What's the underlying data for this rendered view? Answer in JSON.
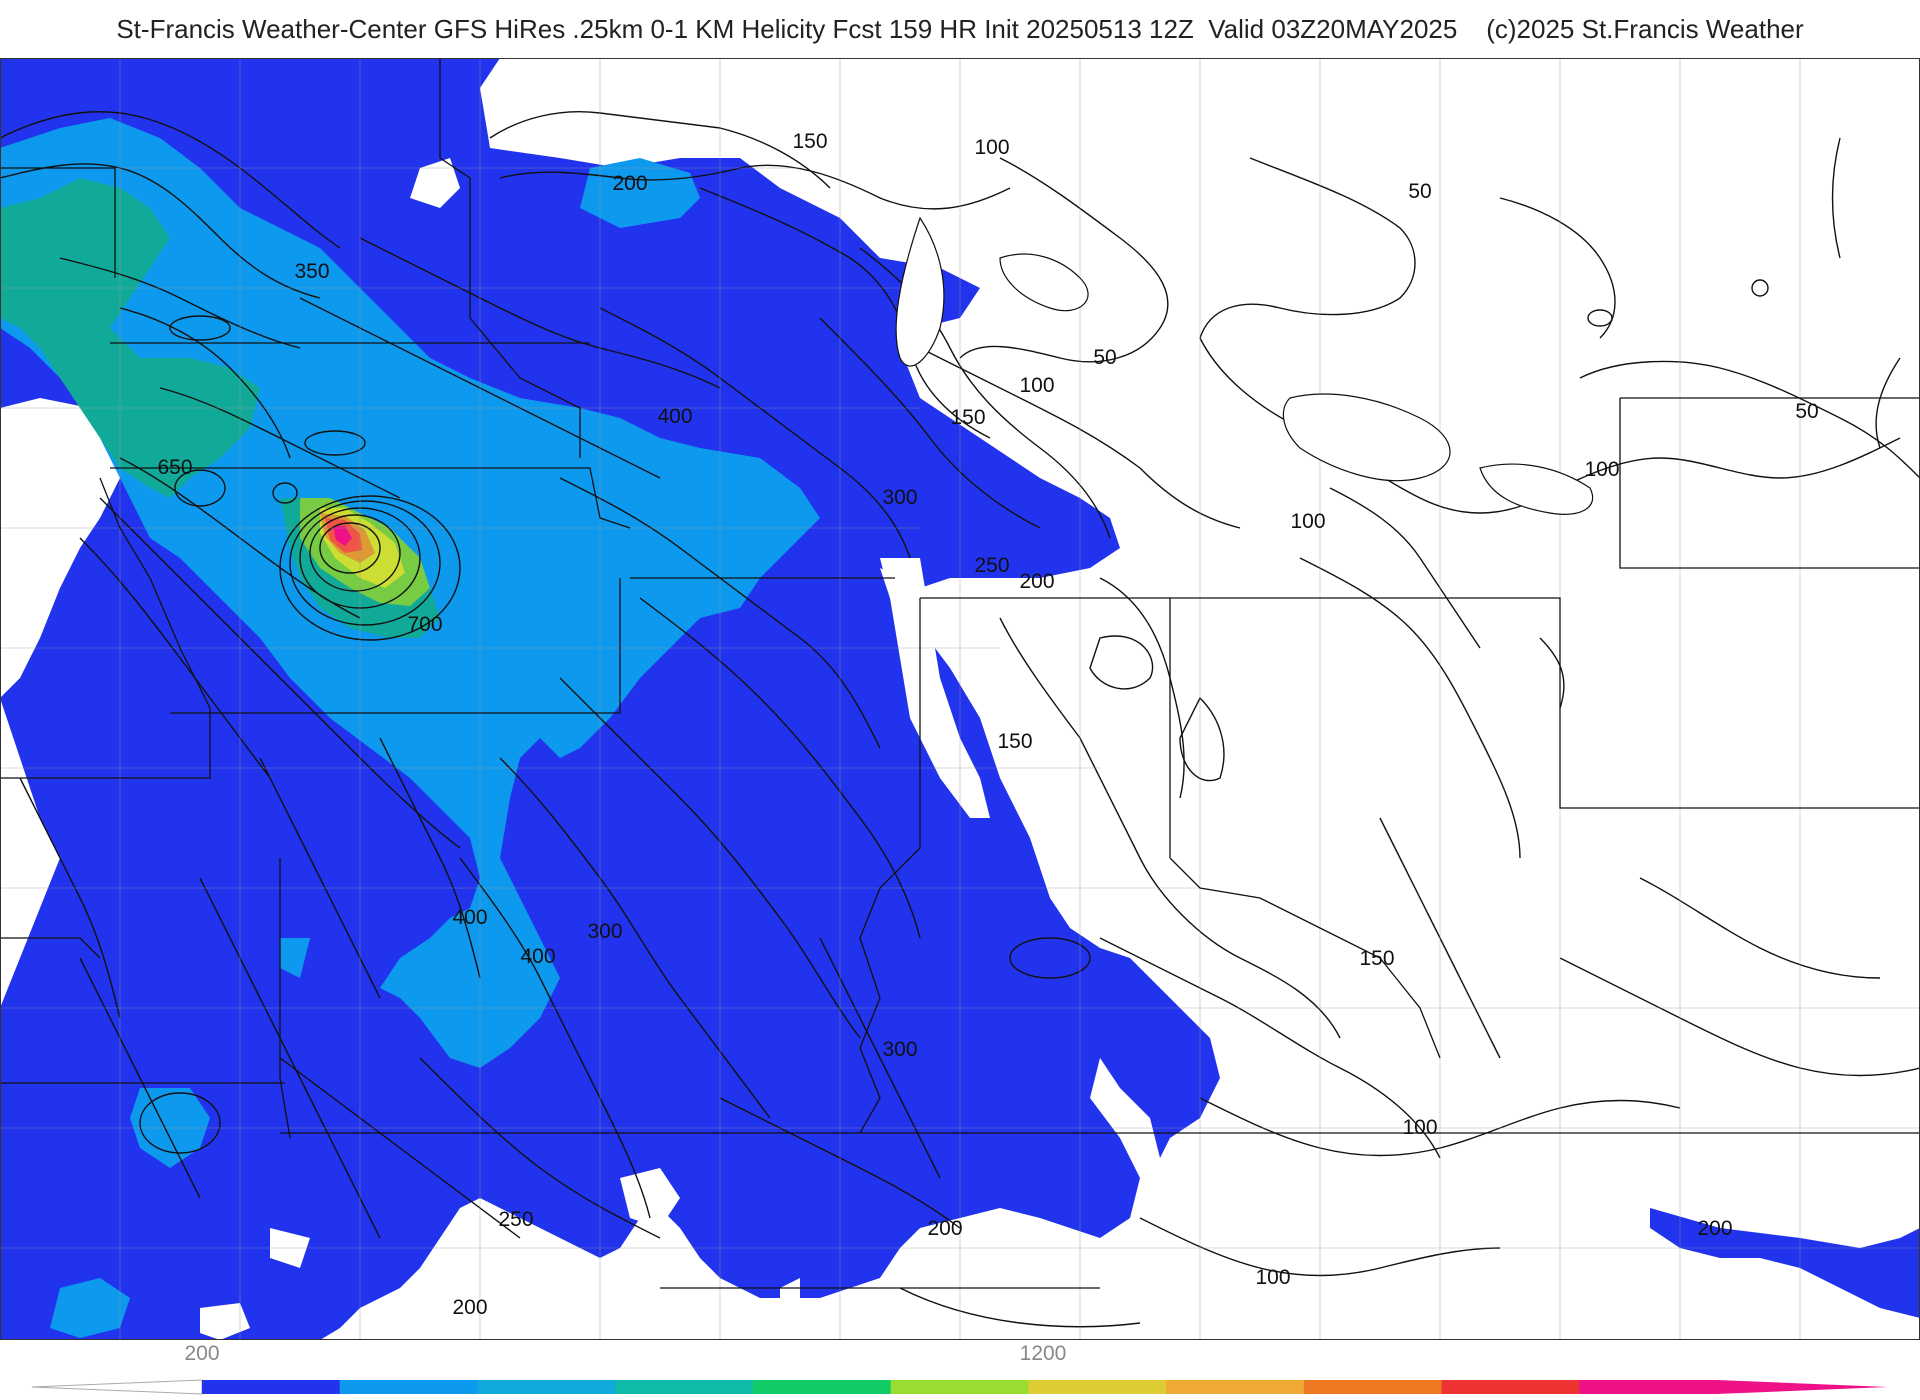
{
  "title": "St-Francis Weather-Center GFS HiRes .25km 0-1 KM Helicity Fcst 159 HR Init 20250513 12Z  Valid 03Z20MAY2025    (c)2025 St.Francis Weather",
  "map": {
    "field": "0-1 KM Helicity",
    "contour_labels": [
      "150",
      "200",
      "100",
      "50",
      "350",
      "400",
      "650",
      "50",
      "100",
      "150",
      "300",
      "250",
      "200",
      "100",
      "100",
      "50",
      "700",
      "150",
      "400",
      "300",
      "400",
      "150",
      "300",
      "100",
      "250",
      "200",
      "200",
      "200",
      "100"
    ]
  },
  "colorbar": {
    "tick_labels": [
      "200",
      "1200"
    ],
    "colors": [
      "#2233ee",
      "#0d99ee",
      "#11aadd",
      "#11bbaa",
      "#11cc66",
      "#99dd33",
      "#ddcc33",
      "#eeaa33",
      "#ee7722",
      "#ee3333",
      "#ee1188"
    ]
  }
}
